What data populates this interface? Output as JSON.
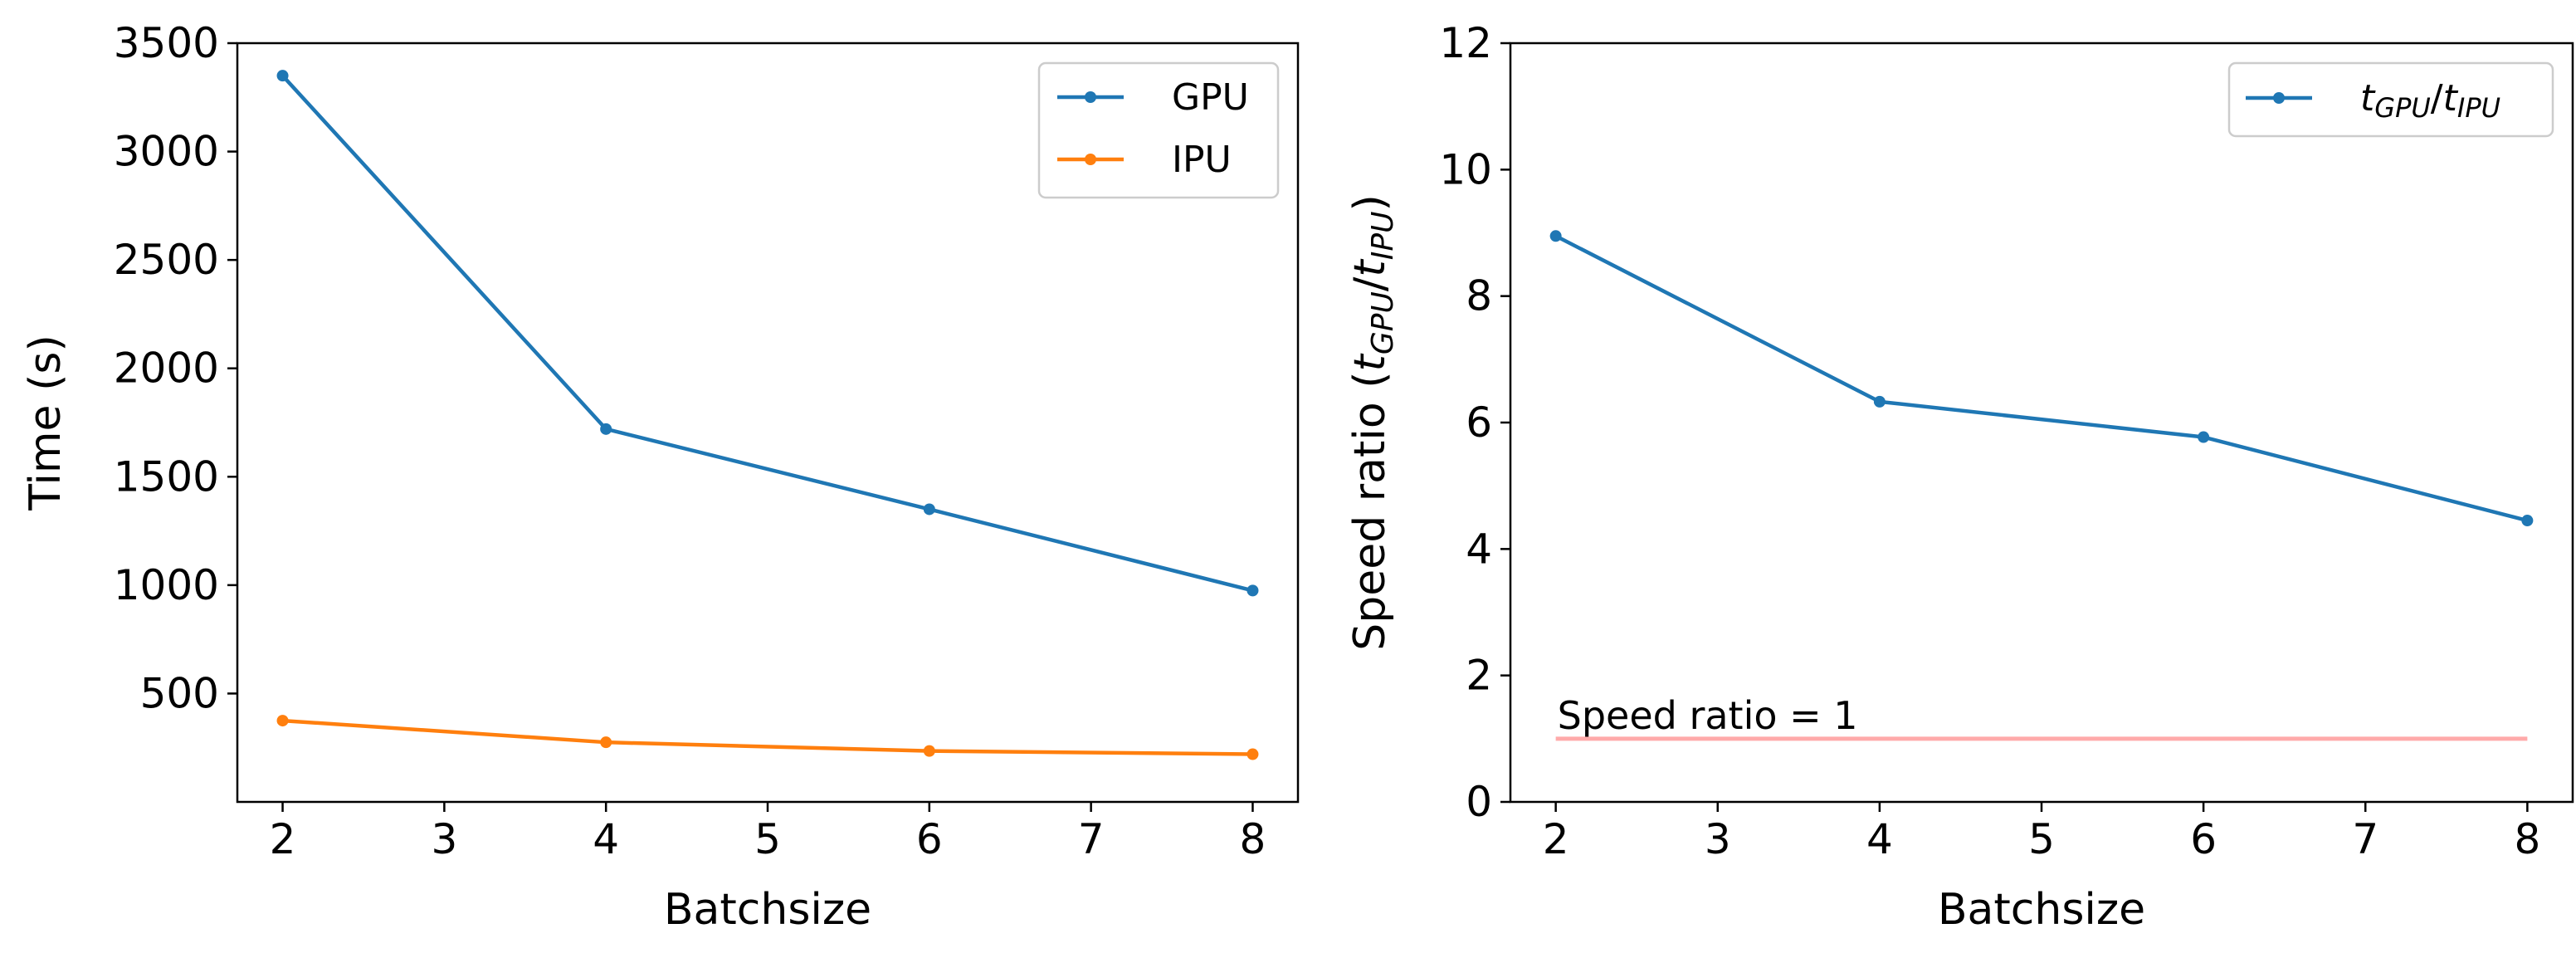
{
  "chart_data": [
    {
      "type": "line",
      "title": "",
      "xlabel": "Batchsize",
      "ylabel": "Time (s)",
      "xlim": [
        1.72,
        8.28
      ],
      "ylim": [
        0,
        3500
      ],
      "xticks": [
        2,
        3,
        4,
        5,
        6,
        7,
        8
      ],
      "yticks": [
        500,
        1000,
        1500,
        2000,
        2500,
        3000,
        3500
      ],
      "legend_position": "upper right",
      "x": [
        2,
        4,
        6,
        8
      ],
      "series": [
        {
          "name": "GPU",
          "color": "#1f77b4",
          "values": [
            3350,
            1720,
            1350,
            975
          ]
        },
        {
          "name": "IPU",
          "color": "#ff7f0e",
          "values": [
            375,
            275,
            235,
            220
          ]
        }
      ]
    },
    {
      "type": "line",
      "title": "",
      "xlabel": "Batchsize",
      "ylabel_prefix": "Speed ratio (",
      "ylabel_var1": "t",
      "ylabel_sub1": "GPU",
      "ylabel_slash": "/",
      "ylabel_var2": "t",
      "ylabel_sub2": "IPU",
      "ylabel_suffix": ")",
      "xlim": [
        1.72,
        8.28
      ],
      "ylim": [
        0,
        12
      ],
      "xticks": [
        2,
        3,
        4,
        5,
        6,
        7,
        8
      ],
      "yticks": [
        0,
        2,
        4,
        6,
        8,
        10,
        12
      ],
      "legend_position": "upper right",
      "x": [
        2,
        4,
        6,
        8
      ],
      "series": [
        {
          "name": "tGPU/tIPU",
          "color": "#1f77b4",
          "values": [
            8.95,
            6.33,
            5.77,
            4.45
          ]
        }
      ],
      "reference_line": {
        "y": 1,
        "x_range": [
          2,
          8
        ],
        "color": "#ffaaaa",
        "label": "Speed ratio = 1"
      },
      "legend_label": {
        "var1": "t",
        "sub1": "GPU",
        "slash": "/",
        "var2": "t",
        "sub2": "IPU"
      }
    }
  ]
}
